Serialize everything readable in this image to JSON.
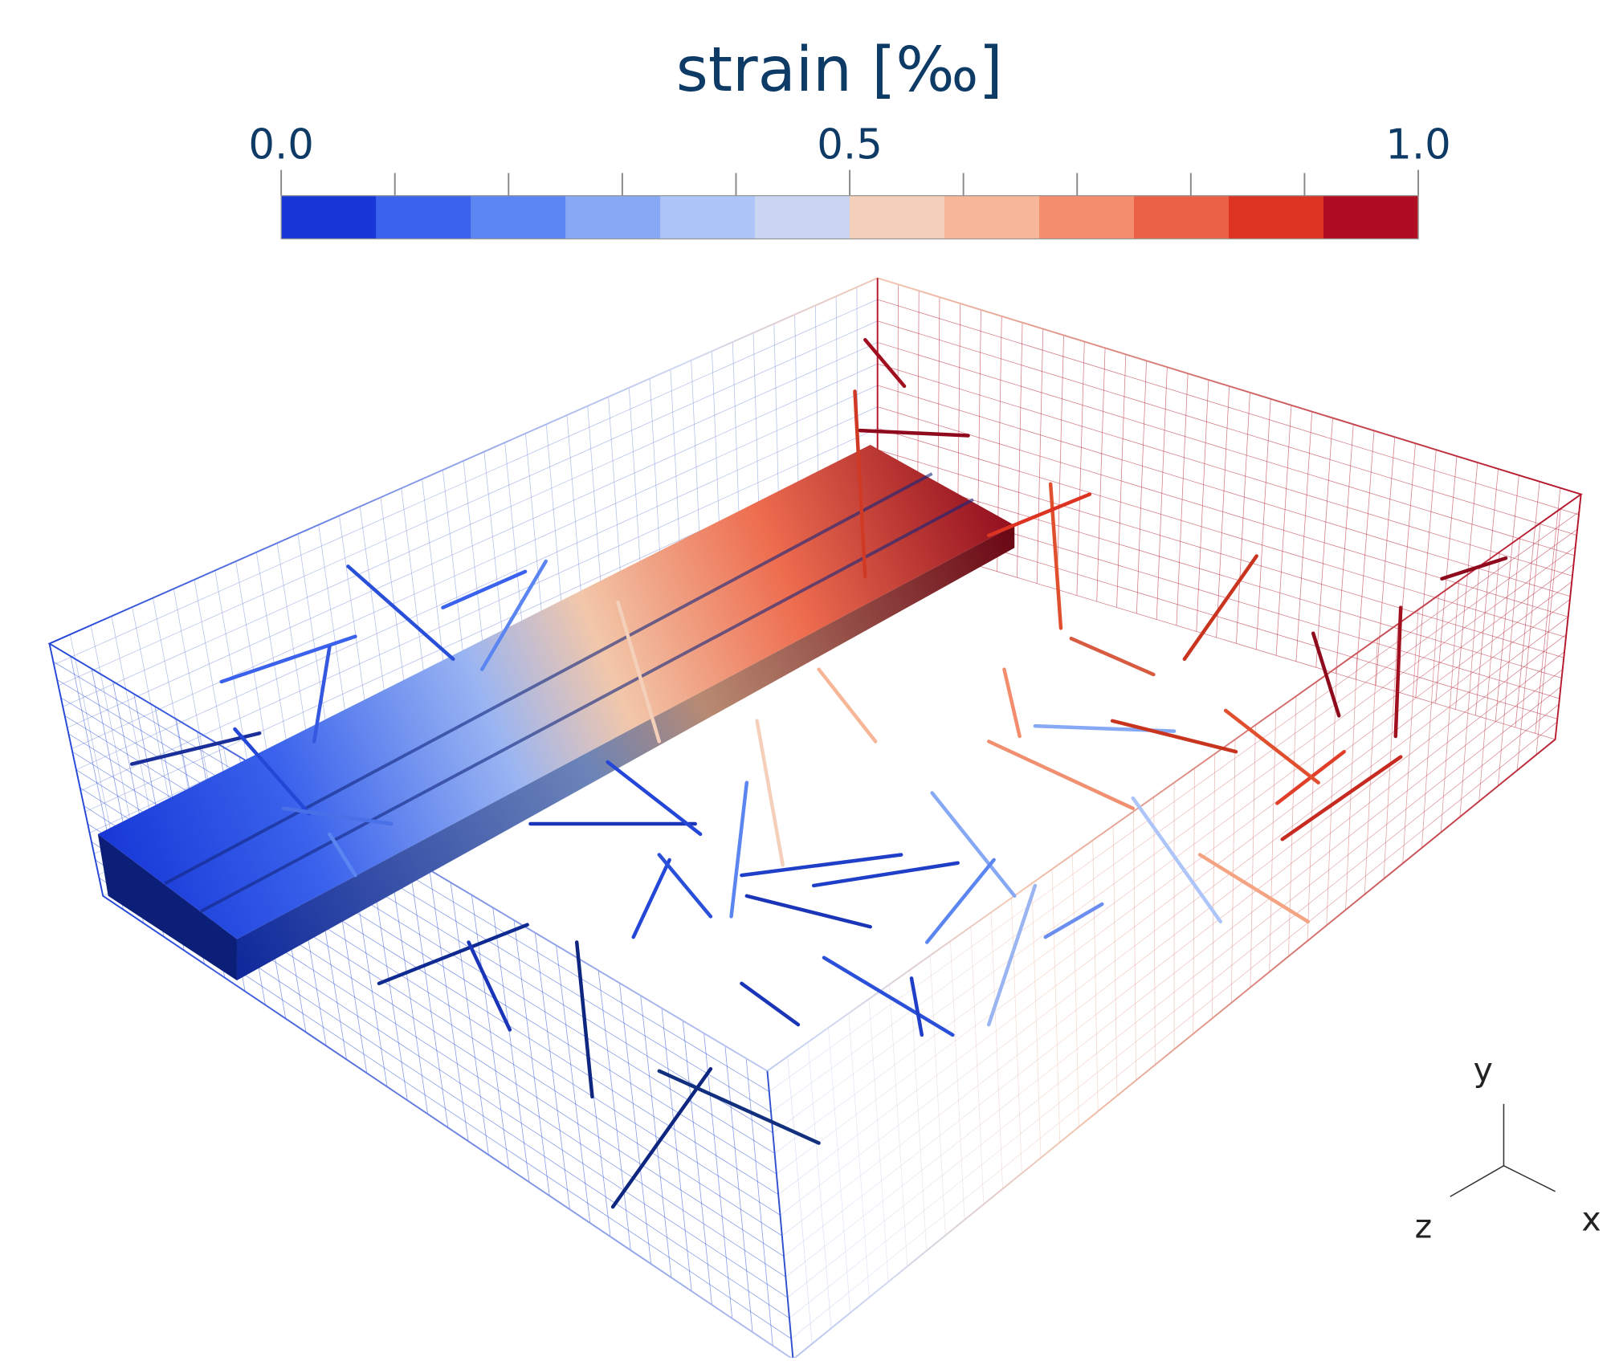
{
  "colorbar": {
    "title": "strain [‰]",
    "range": [
      0,
      1
    ],
    "ticks": [
      {
        "value": 0,
        "label": "0.0"
      },
      {
        "value": 0.5,
        "label": "0.5"
      },
      {
        "value": 1,
        "label": "1.0"
      }
    ],
    "minor_ticks": [
      0.1,
      0.2,
      0.3,
      0.4,
      0.6,
      0.7,
      0.8,
      0.9
    ],
    "colors": [
      "#1737d6",
      "#3a62ec",
      "#5b86f2",
      "#87a8f5",
      "#adc5f8",
      "#cad6f1",
      "#f4d0bb",
      "#f8b699",
      "#f48d6d",
      "#ea6148",
      "#dd3322",
      "#b00d22"
    ]
  },
  "axes_triad": {
    "y": "y",
    "z": "z",
    "x": "x"
  }
}
